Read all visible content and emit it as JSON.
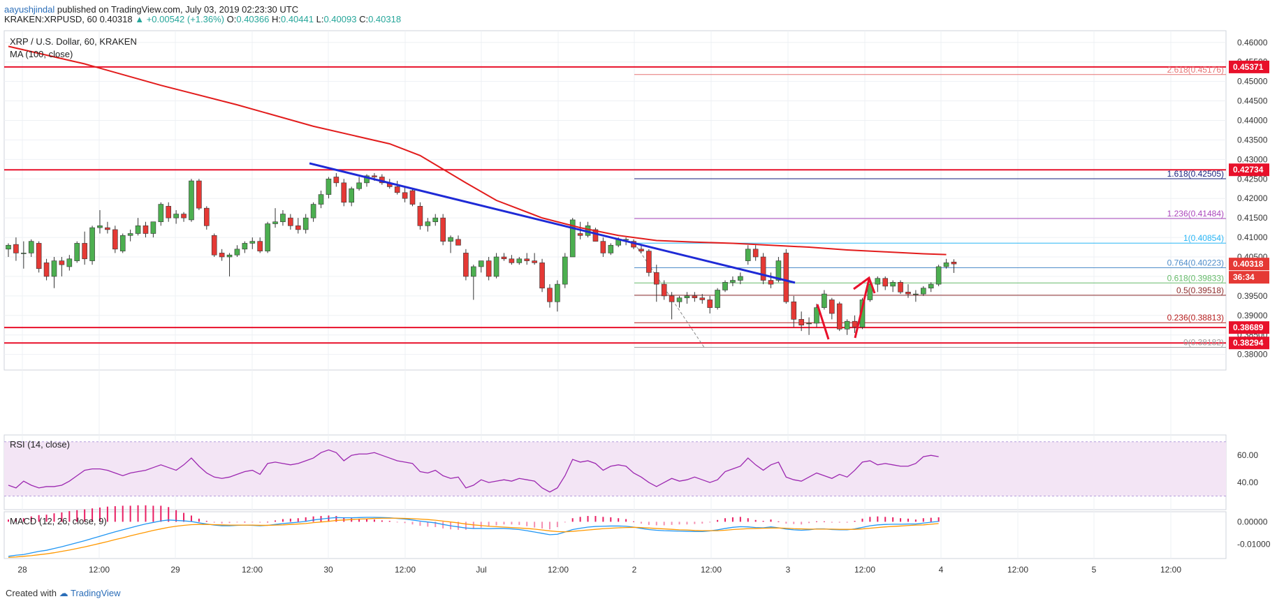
{
  "header": {
    "author": "aayushjindal",
    "published": "published on TradingView.com, July 03, 2019 02:23:30 UTC",
    "symbol": "KRAKEN:XRPUSD, 60",
    "last": "0.40318",
    "change": "+0.00542 (+1.36%)",
    "o_label": "O:",
    "o": "0.40366",
    "h_label": "H:",
    "h": "0.40441",
    "l_label": "L:",
    "l": "0.40093",
    "c_label": "C:",
    "c": "0.40318"
  },
  "footer": {
    "created_with": "Created with",
    "brand": "TradingView"
  },
  "colors": {
    "up": "#4caf50",
    "down": "#e53935",
    "ma": "#e21c1c",
    "trendline": "#1e2ad6",
    "rsi": "#9c27b0",
    "rsi_band": "#f3e5f5",
    "macd": "#2196f3",
    "signal": "#ff9800",
    "hist": "#e91e63",
    "support": "#e8102a"
  },
  "chart_data": {
    "type": "candlestick",
    "title": "XRP / U.S. Dollar, 60, KRAKEN",
    "indicator_label": "MA (100, close)",
    "x_ticks": [
      "28",
      "12:00",
      "29",
      "12:00",
      "30",
      "12:00",
      "Jul",
      "12:00",
      "2",
      "12:00",
      "3",
      "12:00",
      "4",
      "12:00",
      "5",
      "12:00"
    ],
    "y_ticks": [
      "0.46000",
      "0.45500",
      "0.45000",
      "0.44500",
      "0.44000",
      "0.43500",
      "0.43000",
      "0.42500",
      "0.42000",
      "0.41500",
      "0.41000",
      "0.40500",
      "0.40000",
      "0.39500",
      "0.39000",
      "0.38500",
      "0.38000"
    ],
    "ylim": [
      0.376,
      0.463
    ],
    "candles": [
      [
        0.407,
        0.4085,
        0.405,
        0.408
      ],
      [
        0.4082,
        0.41,
        0.404,
        0.406
      ],
      [
        0.406,
        0.409,
        0.402,
        0.406
      ],
      [
        0.406,
        0.4095,
        0.405,
        0.409
      ],
      [
        0.4085,
        0.409,
        0.401,
        0.402
      ],
      [
        0.4035,
        0.4045,
        0.399,
        0.4
      ],
      [
        0.4,
        0.405,
        0.397,
        0.404
      ],
      [
        0.404,
        0.405,
        0.4,
        0.403
      ],
      [
        0.4025,
        0.4055,
        0.4015,
        0.4045
      ],
      [
        0.404,
        0.409,
        0.4035,
        0.4085
      ],
      [
        0.4085,
        0.4115,
        0.403,
        0.4045
      ],
      [
        0.404,
        0.413,
        0.403,
        0.4125
      ],
      [
        0.4125,
        0.417,
        0.411,
        0.413
      ],
      [
        0.4125,
        0.414,
        0.411,
        0.412
      ],
      [
        0.412,
        0.413,
        0.406,
        0.407
      ],
      [
        0.4065,
        0.411,
        0.406,
        0.4105
      ],
      [
        0.4105,
        0.412,
        0.409,
        0.411
      ],
      [
        0.411,
        0.415,
        0.4105,
        0.413
      ],
      [
        0.413,
        0.414,
        0.41,
        0.411
      ],
      [
        0.411,
        0.414,
        0.41,
        0.414
      ],
      [
        0.414,
        0.419,
        0.413,
        0.4185
      ],
      [
        0.418,
        0.419,
        0.414,
        0.415
      ],
      [
        0.415,
        0.417,
        0.4135,
        0.416
      ],
      [
        0.416,
        0.4165,
        0.414,
        0.415
      ],
      [
        0.4145,
        0.425,
        0.414,
        0.4245
      ],
      [
        0.4245,
        0.425,
        0.417,
        0.4175
      ],
      [
        0.4175,
        0.418,
        0.412,
        0.413
      ],
      [
        0.4105,
        0.411,
        0.405,
        0.4055
      ],
      [
        0.406,
        0.407,
        0.404,
        0.405
      ],
      [
        0.405,
        0.406,
        0.4,
        0.4055
      ],
      [
        0.4055,
        0.408,
        0.405,
        0.407
      ],
      [
        0.407,
        0.409,
        0.406,
        0.4085
      ],
      [
        0.4085,
        0.41,
        0.407,
        0.409
      ],
      [
        0.409,
        0.41,
        0.406,
        0.4065
      ],
      [
        0.4065,
        0.414,
        0.406,
        0.4135
      ],
      [
        0.4135,
        0.4175,
        0.4125,
        0.414
      ],
      [
        0.414,
        0.417,
        0.413,
        0.416
      ],
      [
        0.415,
        0.416,
        0.412,
        0.413
      ],
      [
        0.413,
        0.415,
        0.411,
        0.412
      ],
      [
        0.412,
        0.416,
        0.411,
        0.415
      ],
      [
        0.415,
        0.419,
        0.414,
        0.4185
      ],
      [
        0.4185,
        0.422,
        0.4175,
        0.421
      ],
      [
        0.421,
        0.4255,
        0.42,
        0.425
      ],
      [
        0.4255,
        0.4265,
        0.423,
        0.424
      ],
      [
        0.424,
        0.425,
        0.418,
        0.419
      ],
      [
        0.419,
        0.423,
        0.418,
        0.4225
      ],
      [
        0.4225,
        0.4255,
        0.422,
        0.424
      ],
      [
        0.424,
        0.4262,
        0.423,
        0.4258
      ],
      [
        0.4258,
        0.4265,
        0.4245,
        0.4255
      ],
      [
        0.4255,
        0.4262,
        0.4235,
        0.424
      ],
      [
        0.424,
        0.425,
        0.4225,
        0.423
      ],
      [
        0.423,
        0.4245,
        0.421,
        0.4215
      ],
      [
        0.4215,
        0.423,
        0.419,
        0.42
      ],
      [
        0.422,
        0.4225,
        0.418,
        0.4185
      ],
      [
        0.418,
        0.419,
        0.412,
        0.413
      ],
      [
        0.413,
        0.415,
        0.4115,
        0.414
      ],
      [
        0.414,
        0.416,
        0.413,
        0.415
      ],
      [
        0.415,
        0.416,
        0.408,
        0.409
      ],
      [
        0.409,
        0.4105,
        0.406,
        0.41
      ],
      [
        0.4095,
        0.4105,
        0.408,
        0.408
      ],
      [
        0.406,
        0.407,
        0.399,
        0.4
      ],
      [
        0.4,
        0.403,
        0.394,
        0.4025
      ],
      [
        0.4025,
        0.404,
        0.401,
        0.404
      ],
      [
        0.404,
        0.405,
        0.399,
        0.4
      ],
      [
        0.4,
        0.406,
        0.3995,
        0.405
      ],
      [
        0.405,
        0.406,
        0.404,
        0.4045
      ],
      [
        0.4045,
        0.4055,
        0.403,
        0.4035
      ],
      [
        0.4035,
        0.405,
        0.403,
        0.4045
      ],
      [
        0.4045,
        0.406,
        0.403,
        0.404
      ],
      [
        0.404,
        0.406,
        0.403,
        0.4035
      ],
      [
        0.4035,
        0.4045,
        0.396,
        0.397
      ],
      [
        0.397,
        0.398,
        0.392,
        0.3935
      ],
      [
        0.3935,
        0.399,
        0.391,
        0.398
      ],
      [
        0.398,
        0.406,
        0.397,
        0.405
      ],
      [
        0.405,
        0.415,
        0.405,
        0.4145
      ],
      [
        0.411,
        0.414,
        0.4095,
        0.4105
      ],
      [
        0.4105,
        0.414,
        0.41,
        0.413
      ],
      [
        0.412,
        0.4125,
        0.409,
        0.409
      ],
      [
        0.409,
        0.41,
        0.405,
        0.406
      ],
      [
        0.406,
        0.4085,
        0.4055,
        0.408
      ],
      [
        0.408,
        0.41,
        0.4075,
        0.4095
      ],
      [
        0.4095,
        0.41,
        0.408,
        0.4095
      ],
      [
        0.409,
        0.4095,
        0.407,
        0.4075
      ],
      [
        0.407,
        0.408,
        0.406,
        0.4065
      ],
      [
        0.4065,
        0.407,
        0.4,
        0.401
      ],
      [
        0.401,
        0.403,
        0.3935,
        0.398
      ],
      [
        0.398,
        0.399,
        0.394,
        0.395
      ],
      [
        0.395,
        0.396,
        0.389,
        0.3935
      ],
      [
        0.3935,
        0.395,
        0.392,
        0.3945
      ],
      [
        0.3945,
        0.396,
        0.393,
        0.395
      ],
      [
        0.395,
        0.396,
        0.3935,
        0.3945
      ],
      [
        0.3945,
        0.3955,
        0.393,
        0.394
      ],
      [
        0.394,
        0.395,
        0.3905,
        0.392
      ],
      [
        0.392,
        0.397,
        0.3915,
        0.3965
      ],
      [
        0.3965,
        0.399,
        0.396,
        0.3985
      ],
      [
        0.3985,
        0.4,
        0.3975,
        0.399
      ],
      [
        0.399,
        0.401,
        0.398,
        0.4
      ],
      [
        0.404,
        0.408,
        0.403,
        0.407
      ],
      [
        0.407,
        0.408,
        0.404,
        0.405
      ],
      [
        0.405,
        0.406,
        0.398,
        0.399
      ],
      [
        0.399,
        0.401,
        0.397,
        0.398
      ],
      [
        0.399,
        0.405,
        0.3985,
        0.404
      ],
      [
        0.406,
        0.407,
        0.393,
        0.3935
      ],
      [
        0.3935,
        0.395,
        0.387,
        0.389
      ],
      [
        0.389,
        0.391,
        0.386,
        0.3875
      ],
      [
        0.388,
        0.3895,
        0.385,
        0.388
      ],
      [
        0.388,
        0.393,
        0.387,
        0.392
      ],
      [
        0.392,
        0.3965,
        0.3915,
        0.3955
      ],
      [
        0.394,
        0.3945,
        0.389,
        0.3905
      ],
      [
        0.393,
        0.3935,
        0.386,
        0.3865
      ],
      [
        0.3865,
        0.389,
        0.385,
        0.3885
      ],
      [
        0.3885,
        0.39,
        0.3855,
        0.387
      ],
      [
        0.387,
        0.3945,
        0.3865,
        0.394
      ],
      [
        0.394,
        0.399,
        0.3935,
        0.398
      ],
      [
        0.398,
        0.4,
        0.396,
        0.3995
      ],
      [
        0.3995,
        0.4,
        0.3965,
        0.3975
      ],
      [
        0.3975,
        0.399,
        0.396,
        0.3985
      ],
      [
        0.3985,
        0.399,
        0.3955,
        0.396
      ],
      [
        0.396,
        0.398,
        0.3945,
        0.3955
      ],
      [
        0.3955,
        0.3965,
        0.3935,
        0.3955
      ],
      [
        0.3955,
        0.3975,
        0.395,
        0.397
      ],
      [
        0.397,
        0.3985,
        0.396,
        0.398
      ],
      [
        0.398,
        0.403,
        0.3975,
        0.4025
      ],
      [
        0.4025,
        0.4045,
        0.402,
        0.4035
      ],
      [
        0.4037,
        0.4044,
        0.4009,
        0.4032
      ]
    ],
    "ma": [
      [
        0,
        0.459
      ],
      [
        10,
        0.4545
      ],
      [
        20,
        0.449
      ],
      [
        30,
        0.444
      ],
      [
        40,
        0.4385
      ],
      [
        50,
        0.434
      ],
      [
        54,
        0.431
      ],
      [
        60,
        0.424
      ],
      [
        64,
        0.4195
      ],
      [
        70,
        0.415
      ],
      [
        75,
        0.4125
      ],
      [
        80,
        0.4105
      ],
      [
        85,
        0.4092
      ],
      [
        90,
        0.4088
      ],
      [
        95,
        0.4085
      ],
      [
        100,
        0.408
      ],
      [
        105,
        0.4075
      ],
      [
        110,
        0.4068
      ],
      [
        115,
        0.4063
      ],
      [
        120,
        0.4058
      ],
      [
        123,
        0.4056
      ]
    ],
    "horizontal_levels": [
      "0.45371",
      "0.42734",
      "0.38689",
      "0.38294"
    ],
    "trendline": [
      [
        0.429,
        0.3984
      ]
    ],
    "fibonacci": [
      {
        "ratio": "2.618",
        "value": "0.45176"
      },
      {
        "ratio": "1.618",
        "value": "0.42505"
      },
      {
        "ratio": "1.236",
        "value": "0.41484"
      },
      {
        "ratio": "1",
        "value": "0.40854"
      },
      {
        "ratio": "0.764",
        "value": "0.40223"
      },
      {
        "ratio": "0.618",
        "value": "0.39833"
      },
      {
        "ratio": "0.5",
        "value": "0.39518"
      },
      {
        "ratio": "0.236",
        "value": "0.38813"
      },
      {
        "ratio": "0",
        "value": "0.38182"
      }
    ],
    "price_label": "0.40318",
    "countdown": "36:34",
    "rsi": {
      "label": "RSI (14, close)",
      "ticks": [
        "60.00",
        "40.00"
      ],
      "band": [
        30,
        70
      ],
      "ylim": [
        20,
        75
      ],
      "values": [
        38,
        36,
        41,
        38,
        36,
        37,
        37,
        38,
        41,
        45,
        49,
        50,
        50,
        49,
        47,
        45,
        47,
        48,
        49,
        51,
        53,
        51,
        49,
        53,
        58,
        52,
        47,
        44,
        43,
        44,
        46,
        48,
        49,
        46,
        54,
        55,
        54,
        53,
        54,
        56,
        58,
        62,
        64,
        62,
        56,
        60,
        61,
        61,
        62,
        60,
        58,
        56,
        55,
        54,
        48,
        47,
        49,
        45,
        43,
        44,
        36,
        38,
        42,
        40,
        41,
        42,
        41,
        43,
        42,
        41,
        36,
        33,
        36,
        45,
        57,
        55,
        56,
        54,
        49,
        52,
        53,
        52,
        47,
        44,
        40,
        37,
        40,
        43,
        41,
        42,
        44,
        42,
        40,
        42,
        48,
        50,
        52,
        58,
        53,
        49,
        53,
        55,
        44,
        42,
        41,
        44,
        47,
        45,
        43,
        46,
        44,
        49,
        55,
        56,
        53,
        54,
        53,
        52,
        52,
        54,
        59,
        60,
        59
      ]
    },
    "macd": {
      "label": "MACD (12, 26, close, 9)",
      "ticks": [
        "0.00000",
        "-0.01000"
      ],
      "ylim": [
        -0.0165,
        0.0045
      ],
      "macd": [
        -0.0155,
        -0.015,
        -0.0147,
        -0.014,
        -0.0133,
        -0.0128,
        -0.012,
        -0.0112,
        -0.0103,
        -0.0094,
        -0.0085,
        -0.0075,
        -0.0065,
        -0.0055,
        -0.0045,
        -0.0036,
        -0.0027,
        -0.0018,
        -0.001,
        -0.0003,
        0.0004,
        0.0008,
        0.0006,
        0.0004,
        0.0001,
        -0.0005,
        -0.001,
        -0.0015,
        -0.0018,
        -0.0018,
        -0.0016,
        -0.0015,
        -0.0016,
        -0.0018,
        -0.0016,
        -0.0012,
        -0.0008,
        -0.0005,
        -0.0002,
        0.0002,
        0.0008,
        0.0012,
        0.0016,
        0.0019,
        0.0018,
        0.0018,
        0.0019,
        0.002,
        0.002,
        0.0019,
        0.0018,
        0.0015,
        0.0012,
        0.0008,
        0.0003,
        -0.0001,
        -0.0005,
        -0.0012,
        -0.0018,
        -0.0023,
        -0.0028,
        -0.003,
        -0.003,
        -0.0031,
        -0.003,
        -0.003,
        -0.0032,
        -0.0035,
        -0.004,
        -0.0046,
        -0.0052,
        -0.0058,
        -0.0056,
        -0.0046,
        -0.0035,
        -0.0029,
        -0.0024,
        -0.0021,
        -0.002,
        -0.0019,
        -0.0019,
        -0.002,
        -0.0024,
        -0.003,
        -0.0035,
        -0.0038,
        -0.004,
        -0.0041,
        -0.0042,
        -0.0043,
        -0.0044,
        -0.0044,
        -0.0041,
        -0.0036,
        -0.003,
        -0.0025,
        -0.0022,
        -0.0023,
        -0.0026,
        -0.0027,
        -0.0023,
        -0.0027,
        -0.0033,
        -0.0036,
        -0.0038,
        -0.0036,
        -0.0032,
        -0.0032,
        -0.0035,
        -0.0036,
        -0.0036,
        -0.0032,
        -0.0025,
        -0.0018,
        -0.0014,
        -0.0012,
        -0.0011,
        -0.0011,
        -0.001,
        -0.001,
        -0.0006,
        -0.0002,
        0.0002
      ],
      "signal": [
        -0.016,
        -0.0158,
        -0.0155,
        -0.0152,
        -0.0148,
        -0.0144,
        -0.0139,
        -0.0133,
        -0.0127,
        -0.012,
        -0.0113,
        -0.0105,
        -0.0097,
        -0.0089,
        -0.008,
        -0.0072,
        -0.0063,
        -0.0055,
        -0.0047,
        -0.0039,
        -0.0032,
        -0.0025,
        -0.002,
        -0.0016,
        -0.0013,
        -0.0012,
        -0.0012,
        -0.0013,
        -0.0014,
        -0.0015,
        -0.0015,
        -0.0015,
        -0.0015,
        -0.0016,
        -0.0016,
        -0.0015,
        -0.0014,
        -0.0012,
        -0.001,
        -0.0008,
        -0.0004,
        -0.0001,
        0.0002,
        0.0006,
        0.0008,
        0.001,
        0.0012,
        0.0013,
        0.0015,
        0.0016,
        0.0016,
        0.0016,
        0.0015,
        0.0014,
        0.0012,
        0.001,
        0.0007,
        0.0003,
        -0.0001,
        -0.0005,
        -0.001,
        -0.0014,
        -0.0017,
        -0.002,
        -0.0022,
        -0.0024,
        -0.0026,
        -0.0028,
        -0.003,
        -0.0033,
        -0.0037,
        -0.0041,
        -0.0044,
        -0.0045,
        -0.0043,
        -0.004,
        -0.0037,
        -0.0034,
        -0.0031,
        -0.0029,
        -0.0027,
        -0.0026,
        -0.0025,
        -0.0026,
        -0.0028,
        -0.003,
        -0.0032,
        -0.0034,
        -0.0036,
        -0.0037,
        -0.0039,
        -0.004,
        -0.004,
        -0.004,
        -0.0038,
        -0.0035,
        -0.0033,
        -0.0031,
        -0.003,
        -0.0029,
        -0.0028,
        -0.0028,
        -0.0029,
        -0.0031,
        -0.0032,
        -0.0033,
        -0.0033,
        -0.0033,
        -0.0033,
        -0.0034,
        -0.0034,
        -0.0034,
        -0.0032,
        -0.0029,
        -0.0026,
        -0.0023,
        -0.0021,
        -0.0019,
        -0.0017,
        -0.0015,
        -0.0014,
        -0.0011,
        -0.0008
      ]
    }
  }
}
